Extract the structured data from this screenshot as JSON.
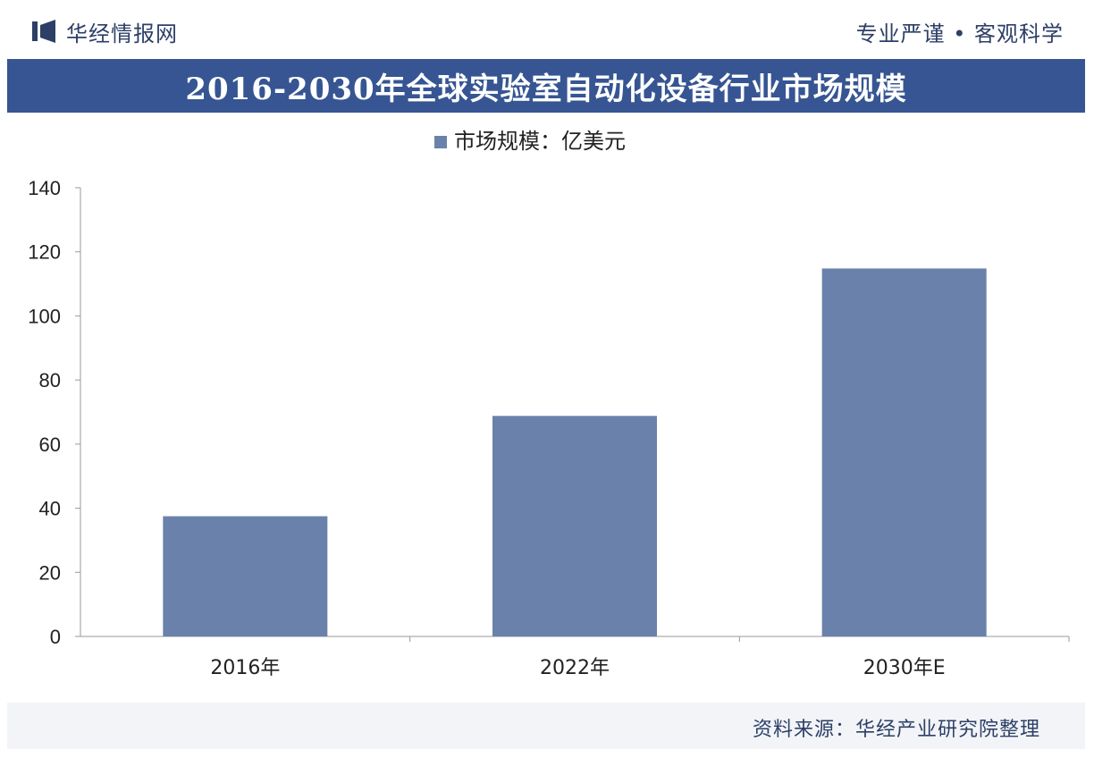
{
  "header": {
    "brand_name": "华经情报网",
    "slogan": "专业严谨 • 客观科学"
  },
  "title": "2016-2030年全球实验室自动化设备行业市场规模",
  "footer": {
    "source": "资料来源：华经产业研究院整理"
  },
  "colors": {
    "bar": "#6a81ab",
    "title_bg": "#365592",
    "text": "#2d3f66"
  },
  "chart_data": {
    "type": "bar",
    "categories": [
      "2016年",
      "2022年",
      "2030年E"
    ],
    "series": [
      {
        "name": "市场规模：亿美元",
        "values": [
          37.5,
          68.8,
          114.8
        ]
      }
    ],
    "ylim": [
      0,
      140
    ],
    "yticks": [
      0,
      20,
      40,
      60,
      80,
      100,
      120,
      140
    ],
    "legend": "top-center",
    "grid": false
  }
}
